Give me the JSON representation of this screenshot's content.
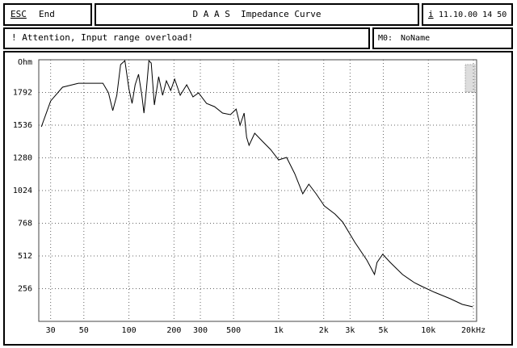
{
  "header": {
    "esc_key": "ESC",
    "esc_label": "End",
    "title": "D A A S  Impedance Curve",
    "info_key": "i",
    "datetime": "11.10.00 14 50"
  },
  "status": {
    "message": "! Attention, Input range overload!",
    "memory_key": "M0:",
    "memory_name": "NoName"
  },
  "chart_data": {
    "type": "line",
    "y_label": "Ohm",
    "log_x": true,
    "grid": true,
    "color": "#000000",
    "x": [
      26,
      30,
      36,
      46,
      67,
      73,
      78,
      83,
      88,
      94,
      100,
      105,
      110,
      116,
      122,
      126,
      131,
      136,
      141,
      148,
      158,
      168,
      178,
      190,
      202,
      220,
      243,
      268,
      292,
      330,
      373,
      422,
      477,
      520,
      553,
      588,
      611,
      634,
      692,
      781,
      883,
      1000,
      1130,
      1280,
      1450,
      1590,
      1780,
      2020,
      2380,
      2680,
      3230,
      3880,
      4370,
      4540,
      4950,
      5570,
      6710,
      8070,
      9120,
      10970,
      14020,
      16850,
      19800
    ],
    "series": [
      {
        "name": "Impedance",
        "values": [
          1523,
          1725,
          1833,
          1864,
          1864,
          1789,
          1650,
          1770,
          2010,
          2041,
          1820,
          1706,
          1852,
          1934,
          1770,
          1630,
          1820,
          2041,
          2022,
          1694,
          1915,
          1770,
          1883,
          1808,
          1896,
          1770,
          1852,
          1757,
          1789,
          1706,
          1681,
          1631,
          1618,
          1662,
          1536,
          1631,
          1441,
          1378,
          1473,
          1409,
          1346,
          1264,
          1283,
          1157,
          999,
          1074,
          999,
          904,
          840,
          777,
          619,
          480,
          367,
          461,
          525,
          461,
          367,
          303,
          272,
          228,
          177,
          133,
          114
        ]
      }
    ],
    "xlim": [
      25,
      21000
    ],
    "ylim": [
      0,
      2048
    ],
    "xticks": [
      30,
      50,
      100,
      200,
      300,
      500,
      {
        "value": 1000,
        "label": "1k"
      },
      {
        "value": 2000,
        "label": "2k"
      },
      {
        "value": 3000,
        "label": "3k"
      },
      {
        "value": 5000,
        "label": "5k"
      },
      {
        "value": 10000,
        "label": "10k"
      },
      {
        "value": 20000,
        "label": "20kHz"
      }
    ],
    "yticks": [
      256,
      512,
      768,
      1024,
      1280,
      1536,
      1792
    ]
  }
}
